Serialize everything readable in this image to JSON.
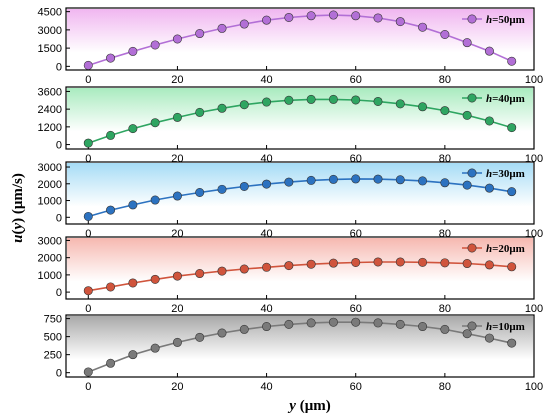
{
  "chart_data": [
    {
      "type": "line",
      "legend": "h=50μm",
      "legend_italic": "h",
      "legend_rest": "=50μm",
      "color": "#b26fd6",
      "band": "#f0b6f0",
      "ylim": [
        -300,
        4800
      ],
      "yticks": [
        "0",
        "1500",
        "3000",
        "4500"
      ],
      "ytick_values": [
        0,
        1500,
        3000,
        4500
      ],
      "xticks": [
        "0",
        "20",
        "40",
        "60",
        "80",
        "100"
      ],
      "xlim": [
        -5,
        100
      ],
      "x": [
        0,
        5,
        10,
        15,
        20,
        25,
        30,
        35,
        40,
        45,
        50,
        55,
        60,
        65,
        70,
        75,
        80,
        85,
        90,
        95
      ],
      "y": [
        80,
        680,
        1230,
        1760,
        2250,
        2700,
        3120,
        3480,
        3800,
        4020,
        4160,
        4220,
        4160,
        3980,
        3680,
        3220,
        2620,
        1950,
        1250,
        420
      ]
    },
    {
      "type": "line",
      "legend": "h=40μm",
      "legend_italic": "h",
      "legend_rest": "=40μm",
      "color": "#2ea561",
      "band": "#a9ebbf",
      "ylim": [
        -300,
        3900
      ],
      "yticks": [
        "0",
        "1200",
        "2400",
        "3600"
      ],
      "ytick_values": [
        0,
        1200,
        2400,
        3600
      ],
      "xticks": [
        "0",
        "20",
        "40",
        "60",
        "80",
        "100"
      ],
      "xlim": [
        -5,
        100
      ],
      "x": [
        0,
        5,
        10,
        15,
        20,
        25,
        30,
        35,
        40,
        45,
        50,
        55,
        60,
        65,
        70,
        75,
        80,
        85,
        90,
        95
      ],
      "y": [
        100,
        620,
        1080,
        1480,
        1840,
        2180,
        2460,
        2700,
        2880,
        3000,
        3060,
        3060,
        3020,
        2920,
        2760,
        2560,
        2300,
        1980,
        1600,
        1150
      ]
    },
    {
      "type": "line",
      "legend": "h=30μm",
      "legend_italic": "h",
      "legend_rest": "=30μm",
      "color": "#2c72c0",
      "band": "#a6dcf6",
      "ylim": [
        -400,
        3300
      ],
      "yticks": [
        "0",
        "1000",
        "2000",
        "3000"
      ],
      "ytick_values": [
        0,
        1000,
        2000,
        3000
      ],
      "xticks": [
        "0",
        "20",
        "40",
        "60",
        "80",
        "100"
      ],
      "xlim": [
        -5,
        100
      ],
      "x": [
        0,
        5,
        10,
        15,
        20,
        25,
        30,
        35,
        40,
        45,
        50,
        55,
        60,
        65,
        70,
        75,
        80,
        85,
        90,
        95
      ],
      "y": [
        50,
        430,
        740,
        1030,
        1270,
        1480,
        1670,
        1840,
        1980,
        2100,
        2200,
        2260,
        2290,
        2280,
        2240,
        2170,
        2060,
        1920,
        1740,
        1530
      ]
    },
    {
      "type": "line",
      "legend": "h=20μm",
      "legend_italic": "h",
      "legend_rest": "=20μm",
      "color": "#d0543c",
      "band": "#f6b8b0",
      "ylim": [
        -400,
        3200
      ],
      "yticks": [
        "0",
        "1000",
        "2000",
        "3000"
      ],
      "ytick_values": [
        0,
        1000,
        2000,
        3000
      ],
      "xticks": [
        "0",
        "20",
        "40",
        "60",
        "80",
        "100"
      ],
      "xlim": [
        -5,
        100
      ],
      "x": [
        0,
        5,
        10,
        15,
        20,
        25,
        30,
        35,
        40,
        45,
        50,
        55,
        60,
        65,
        70,
        75,
        80,
        85,
        90,
        95
      ],
      "y": [
        80,
        300,
        530,
        740,
        930,
        1080,
        1220,
        1340,
        1440,
        1540,
        1620,
        1680,
        1720,
        1750,
        1750,
        1730,
        1700,
        1660,
        1580,
        1470
      ]
    },
    {
      "type": "line",
      "legend": "h=10μm",
      "legend_italic": "h",
      "legend_rest": "=10μm",
      "color": "#7a7a7a",
      "band": "#a9a9a9",
      "ylim": [
        -60,
        800
      ],
      "yticks": [
        "0",
        "250",
        "500",
        "750"
      ],
      "ytick_values": [
        0,
        250,
        500,
        750
      ],
      "xticks": [
        "0",
        "20",
        "40",
        "60",
        "80",
        "100"
      ],
      "xlim": [
        -5,
        100
      ],
      "x": [
        0,
        5,
        10,
        15,
        20,
        25,
        30,
        35,
        40,
        45,
        50,
        55,
        60,
        65,
        70,
        75,
        80,
        85,
        90,
        95
      ],
      "y": [
        10,
        130,
        250,
        340,
        420,
        490,
        550,
        600,
        640,
        670,
        690,
        700,
        700,
        690,
        670,
        640,
        600,
        540,
        480,
        410
      ]
    }
  ],
  "axes": {
    "ylabel_italic": "u",
    "ylabel_mid": "(",
    "ylabel_italic2": "y",
    "ylabel_rest": ") (μm/s)",
    "xlabel_italic": "y",
    "xlabel_rest": " (μm)"
  }
}
